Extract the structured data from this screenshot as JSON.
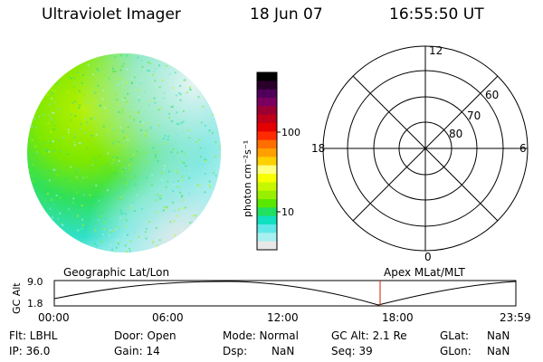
{
  "header": {
    "title": "Ultraviolet Imager",
    "date": "18 Jun 07",
    "time": "16:55:50 UT"
  },
  "colorbar": {
    "label": "photon cm⁻²s⁻¹",
    "ticks": [
      "100",
      "10"
    ],
    "colors": [
      "#000000",
      "#28002a",
      "#50005a",
      "#7a0060",
      "#9c0032",
      "#c00018",
      "#e40000",
      "#ff2a00",
      "#ff6e00",
      "#ffa000",
      "#ffd000",
      "#ffff80",
      "#f8ff00",
      "#c8f800",
      "#98f000",
      "#5ae800",
      "#20e060",
      "#10e0c0",
      "#60e8e8",
      "#a8f0f0",
      "#e8e8e8"
    ]
  },
  "polar_plot": {
    "mlt_labels": [
      "12",
      "18",
      "6",
      "0"
    ],
    "lat_labels": [
      "60",
      "70",
      "80"
    ]
  },
  "timeline": {
    "left_label": "Geographic Lat/Lon",
    "right_label": "Apex MLat/MLT",
    "y_axis_label": "GC Alt",
    "y_ticks": [
      "9.0",
      "1.8"
    ],
    "x_ticks": [
      "00:00",
      "06:00",
      "12:00",
      "18:00",
      "23:59"
    ],
    "marker_time": "16:55:50",
    "marker_color": "#cc2200"
  },
  "footer": {
    "filter": "Flt: LBHL",
    "ip": "IP: 36.0",
    "door": "Door: Open",
    "gain": "Gain: 14",
    "mode": "Mode: Normal",
    "dsp": "Dsp:",
    "dsp_value": "NaN",
    "gc_alt": "GC Alt: 2.1 Re",
    "seq": "Seq: 39",
    "glat": "GLat:",
    "glat_value": "NaN",
    "glon": "GLon:",
    "glon_value": "NaN"
  }
}
